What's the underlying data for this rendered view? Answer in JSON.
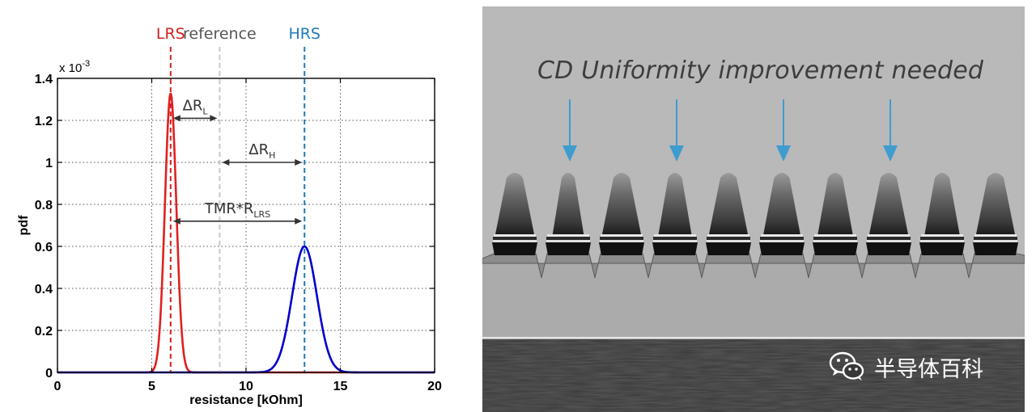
{
  "chart_data": {
    "type": "line",
    "ylabel": "pdf",
    "xlabel": "resistance [kOhm]",
    "y_multiplier": "x 10",
    "y_multiplier_exp": "-3",
    "xlim": [
      0,
      20
    ],
    "ylim": [
      0,
      1.4
    ],
    "x_ticks": [
      0,
      5,
      10,
      15,
      20
    ],
    "y_ticks": [
      0,
      0.2,
      0.4,
      0.6,
      0.8,
      1,
      1.2,
      1.4
    ],
    "x_tick_labels": [
      "0",
      "5",
      "10",
      "15",
      "20"
    ],
    "y_tick_labels": [
      "0",
      "0.2",
      "0.4",
      "0.6",
      "0.8",
      "1",
      "1.2",
      "1.4"
    ],
    "grid": true,
    "series": [
      {
        "name": "LRS",
        "distribution": "gaussian",
        "mean": 6.0,
        "sd": 0.3,
        "peak": 1.33,
        "color": "#e02020"
      },
      {
        "name": "HRS",
        "distribution": "gaussian",
        "mean": 13.1,
        "sd": 0.66,
        "peak": 0.6,
        "color": "#0000cc"
      }
    ],
    "vertical_lines": [
      {
        "label": "LRS",
        "x": 6.0,
        "color": "#d42020",
        "style": "dashed"
      },
      {
        "label": "reference",
        "x": 8.6,
        "color": "#c8c8c8",
        "style": "dashed"
      },
      {
        "label": "HRS",
        "x": 13.1,
        "color": "#1f7bb6",
        "style": "dashed"
      }
    ],
    "annotations": [
      {
        "label": "ΔR",
        "subscript": "L",
        "x_from": 6.0,
        "x_to": 8.6,
        "y": 1.21
      },
      {
        "label": "ΔR",
        "subscript": "H",
        "x_from": 8.6,
        "x_to": 13.1,
        "y": 1.0
      },
      {
        "label": "TMR*R",
        "subscript": "LRS",
        "x_from": 6.0,
        "x_to": 13.1,
        "y": 0.72
      }
    ]
  },
  "tem_image": {
    "caption": "CD Uniformity improvement needed",
    "arrow_color": "#3e9ccf",
    "arrow_count": 4,
    "pillar_count": 10,
    "watermark": "半导体百科"
  }
}
